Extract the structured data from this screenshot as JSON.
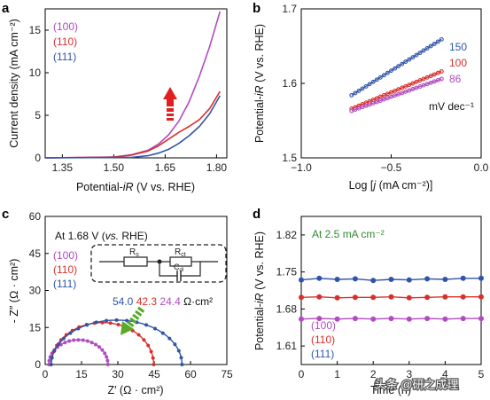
{
  "colors": {
    "s100": "#b04cc0",
    "s110": "#d8302c",
    "s111": "#3055a8",
    "arrow_red": "#e02020",
    "arrow_green": "#5aaa28",
    "annot_green": "#2e8b2e"
  },
  "watermark": {
    "text": "头条 @研之成理",
    "icon": "at-icon"
  },
  "chart_data": [
    {
      "panel": "a",
      "type": "line",
      "xlabel": "Potential-iR (V vs. RHE)",
      "ylabel": "Current density (mA cm⁻²)",
      "xlim": [
        1.3,
        1.83
      ],
      "ylim": [
        0,
        17.5
      ],
      "xticks": [
        "1.35",
        "1.50",
        "1.65",
        "1.80"
      ],
      "yticks": [
        "0",
        "5",
        "10",
        "15"
      ],
      "legend_position": "top-left",
      "annotation": "red upward arrow",
      "series": [
        {
          "name": "(100)",
          "color_key": "s100",
          "x": [
            1.3,
            1.5,
            1.55,
            1.6,
            1.63,
            1.66,
            1.69,
            1.72,
            1.75,
            1.78,
            1.81
          ],
          "y": [
            0,
            0.1,
            0.35,
            0.9,
            1.6,
            2.7,
            4.3,
            6.6,
            9.6,
            13.1,
            17.2
          ]
        },
        {
          "name": "(110)",
          "color_key": "s110",
          "x": [
            1.3,
            1.5,
            1.55,
            1.6,
            1.63,
            1.66,
            1.69,
            1.72,
            1.75,
            1.78,
            1.81
          ],
          "y": [
            0,
            0.08,
            0.3,
            0.8,
            1.4,
            2.2,
            3.0,
            3.7,
            4.5,
            5.8,
            7.8
          ]
        },
        {
          "name": "(111)",
          "color_key": "s111",
          "x": [
            1.3,
            1.55,
            1.6,
            1.63,
            1.66,
            1.69,
            1.72,
            1.75,
            1.78,
            1.81
          ],
          "y": [
            0,
            0.05,
            0.25,
            0.55,
            1.0,
            1.7,
            2.6,
            3.7,
            5.2,
            7.3
          ]
        }
      ]
    },
    {
      "panel": "b",
      "type": "scatter",
      "xlabel": "Log [j (mA cm⁻²)]",
      "ylabel": "Potential-iR (V vs. RHE)",
      "xlim": [
        -1.0,
        0.0
      ],
      "ylim": [
        1.5,
        1.7
      ],
      "xticks": [
        "−1.0",
        "−0.5",
        "0.0"
      ],
      "yticks": [
        "1.5",
        "1.6",
        "1.7"
      ],
      "unit_label": "mV dec⁻¹",
      "series": [
        {
          "name": "150",
          "color_key": "s111",
          "x": [
            -0.72,
            -0.22
          ],
          "y": [
            1.584,
            1.659
          ]
        },
        {
          "name": "100",
          "color_key": "s110",
          "x": [
            -0.72,
            -0.22
          ],
          "y": [
            1.566,
            1.616
          ]
        },
        {
          "name": "86",
          "color_key": "s100",
          "x": [
            -0.72,
            -0.22
          ],
          "y": [
            1.563,
            1.606
          ]
        }
      ]
    },
    {
      "panel": "c",
      "type": "scatter",
      "xlabel": "Z′ (Ω · cm²)",
      "ylabel": "- Z″ (Ω · cm²)",
      "xlim": [
        0,
        75
      ],
      "ylim": [
        0,
        60
      ],
      "xticks": [
        "0",
        "15",
        "30",
        "45",
        "60",
        "75"
      ],
      "yticks": [
        "0",
        "15",
        "30",
        "45",
        "60"
      ],
      "box_title_pre": "At 1.68 V (",
      "box_title_italic": "vs.",
      "box_title_post": " RHE)",
      "circuit": {
        "r1": "R",
        "r1_sub": "s",
        "r2": "R",
        "r2_sub": "ct",
        "c": "C",
        "c_sub": "dl"
      },
      "resistances": [
        "54.0",
        "42.3",
        "24.4"
      ],
      "resistance_unit": "Ω·cm²",
      "legend_position": "left",
      "series": [
        {
          "name": "(100)",
          "color_key": "s100",
          "rs": 1.5,
          "rct": 24.4,
          "peak": 10.0
        },
        {
          "name": "(110)",
          "color_key": "s110",
          "rs": 2.5,
          "rct": 42.3,
          "peak": 17.0
        },
        {
          "name": "(111)",
          "color_key": "s111",
          "rs": 2.5,
          "rct": 54.0,
          "peak": 18.0
        }
      ]
    },
    {
      "panel": "d",
      "type": "line",
      "xlabel": "Time (h)",
      "ylabel": "Potential-iR (V vs. RHE)",
      "xlim": [
        0,
        5
      ],
      "ylim": [
        1.575,
        1.855
      ],
      "xticks": [
        "0",
        "1",
        "2",
        "3",
        "4",
        "5"
      ],
      "yticks": [
        "1.61",
        "1.68",
        "1.75",
        "1.82"
      ],
      "annotation": "At 2.5 mA cm⁻²",
      "legend_position": "bottom-left",
      "series": [
        {
          "name": "(111)",
          "color_key": "s111",
          "x": [
            0,
            0.5,
            1,
            1.5,
            2,
            2.5,
            3,
            3.5,
            4,
            4.5,
            5
          ],
          "y": [
            1.735,
            1.738,
            1.736,
            1.737,
            1.734,
            1.736,
            1.735,
            1.737,
            1.736,
            1.738,
            1.738
          ]
        },
        {
          "name": "(110)",
          "color_key": "s110",
          "x": [
            0,
            0.5,
            1,
            1.5,
            2,
            2.5,
            3,
            3.5,
            4,
            4.5,
            5
          ],
          "y": [
            1.702,
            1.703,
            1.701,
            1.702,
            1.702,
            1.703,
            1.701,
            1.702,
            1.703,
            1.703,
            1.703
          ]
        },
        {
          "name": "(100)",
          "color_key": "s100",
          "x": [
            0,
            0.5,
            1,
            1.5,
            2,
            2.5,
            3,
            3.5,
            4,
            4.5,
            5
          ],
          "y": [
            1.661,
            1.662,
            1.661,
            1.662,
            1.661,
            1.662,
            1.661,
            1.662,
            1.661,
            1.662,
            1.662
          ]
        }
      ]
    }
  ]
}
